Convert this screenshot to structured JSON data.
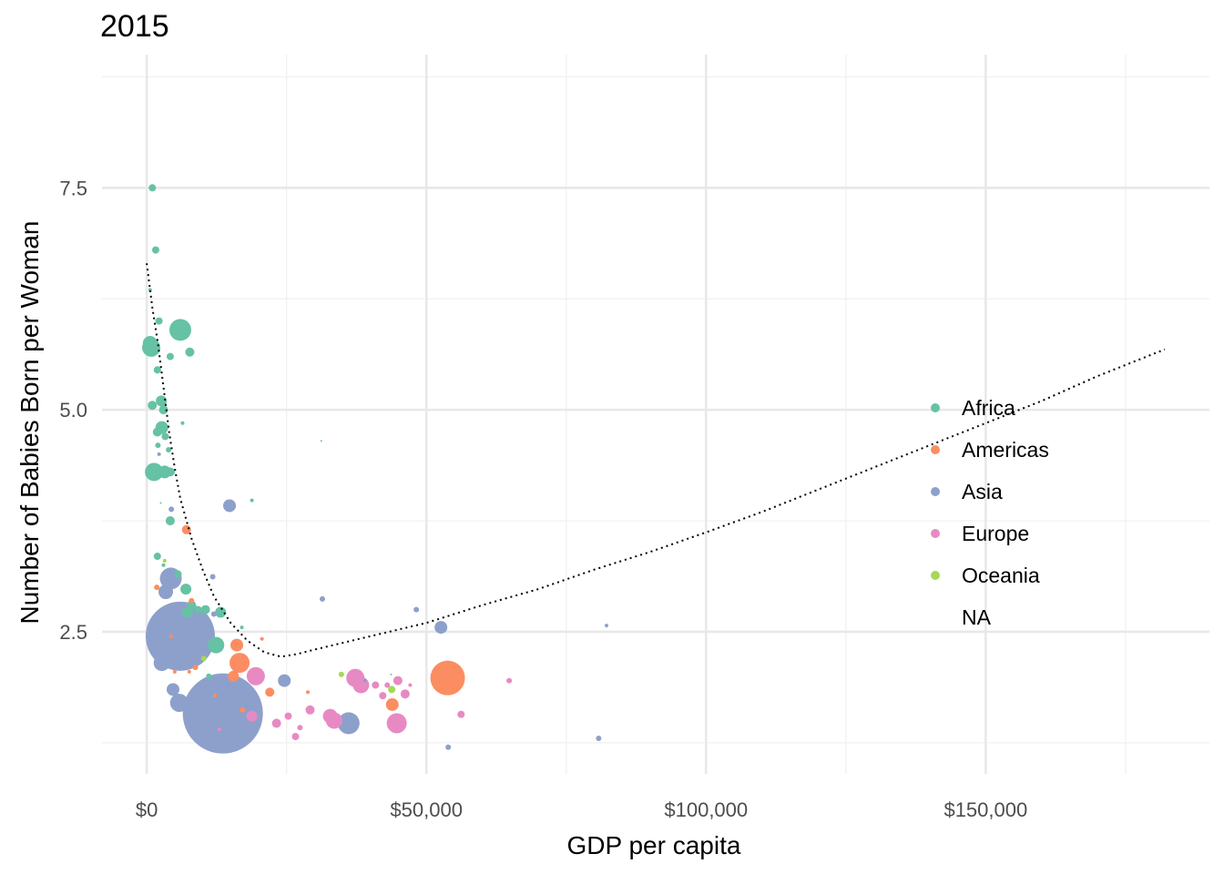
{
  "chart_data": {
    "type": "scatter",
    "title": "2015",
    "xlabel": "GDP per capita",
    "ylabel": "Number of Babies Born per Woman",
    "xlim": [
      -8000,
      190000
    ],
    "ylim": [
      0.9,
      9.0
    ],
    "x_ticks": [
      {
        "value": 0,
        "label": "$0"
      },
      {
        "value": 50000,
        "label": "$50,000"
      },
      {
        "value": 100000,
        "label": "$100,000"
      },
      {
        "value": 150000,
        "label": "$150,000"
      }
    ],
    "y_ticks": [
      {
        "value": 2.5,
        "label": "2.5"
      },
      {
        "value": 5.0,
        "label": "5.0"
      },
      {
        "value": 7.5,
        "label": "7.5"
      }
    ],
    "grid": true,
    "legend": {
      "placement": "right",
      "entries": [
        {
          "name": "Africa",
          "color": "#66C2A5"
        },
        {
          "name": "Americas",
          "color": "#FC8D62"
        },
        {
          "name": "Asia",
          "color": "#8DA0CB"
        },
        {
          "name": "Europe",
          "color": "#E78AC3"
        },
        {
          "name": "Oceania",
          "color": "#A6D854"
        },
        {
          "name": "NA",
          "color": "none"
        }
      ]
    },
    "series": [
      {
        "name": "Africa",
        "color": "#66C2A5",
        "points": [
          [
            1000,
            7.5,
            4
          ],
          [
            1600,
            6.8,
            4
          ],
          [
            600,
            6.35,
            2
          ],
          [
            2200,
            6.0,
            4
          ],
          [
            6000,
            5.9,
            12
          ],
          [
            7700,
            5.65,
            5
          ],
          [
            600,
            5.75,
            8
          ],
          [
            800,
            5.7,
            10
          ],
          [
            4200,
            5.6,
            4
          ],
          [
            1300,
            5.7,
            6
          ],
          [
            1900,
            5.45,
            4
          ],
          [
            2600,
            5.1,
            6
          ],
          [
            1000,
            5.05,
            5
          ],
          [
            3000,
            5.0,
            5
          ],
          [
            6400,
            4.85,
            2
          ],
          [
            1900,
            4.75,
            5
          ],
          [
            2700,
            4.8,
            7
          ],
          [
            3300,
            4.7,
            4
          ],
          [
            2000,
            4.6,
            3
          ],
          [
            3900,
            4.55,
            3
          ],
          [
            31200,
            4.65,
            1
          ],
          [
            1300,
            4.3,
            10
          ],
          [
            3200,
            4.3,
            7
          ],
          [
            4200,
            4.3,
            5
          ],
          [
            2500,
            3.95,
            1
          ],
          [
            4200,
            3.75,
            5
          ],
          [
            18800,
            3.98,
            2
          ],
          [
            1900,
            3.35,
            4
          ],
          [
            3000,
            3.25,
            2
          ],
          [
            5600,
            3.15,
            4
          ],
          [
            7000,
            2.98,
            6
          ],
          [
            8000,
            2.8,
            5
          ],
          [
            9200,
            2.75,
            4
          ],
          [
            10500,
            2.75,
            5
          ],
          [
            7300,
            2.72,
            6
          ],
          [
            13200,
            2.72,
            6
          ],
          [
            17000,
            2.55,
            2
          ],
          [
            12400,
            2.35,
            9
          ],
          [
            11100,
            2.0,
            3
          ]
        ]
      },
      {
        "name": "Americas",
        "color": "#FC8D62",
        "points": [
          [
            7100,
            3.65,
            5
          ],
          [
            1800,
            3.0,
            3
          ],
          [
            8000,
            2.85,
            3
          ],
          [
            20600,
            2.42,
            2
          ],
          [
            16100,
            2.35,
            7
          ],
          [
            16600,
            2.15,
            11
          ],
          [
            15500,
            2.0,
            6
          ],
          [
            7600,
            2.05,
            2
          ],
          [
            12200,
            1.78,
            2
          ],
          [
            22000,
            1.82,
            5
          ],
          [
            28800,
            1.82,
            2
          ],
          [
            53800,
            1.98,
            19
          ],
          [
            43900,
            1.68,
            7
          ],
          [
            17100,
            1.62,
            3
          ],
          [
            4400,
            2.45,
            2
          ],
          [
            5000,
            2.05,
            2
          ],
          [
            8700,
            2.1,
            3
          ]
        ]
      },
      {
        "name": "Asia",
        "color": "#8DA0CB",
        "points": [
          [
            6000,
            2.45,
            38
          ],
          [
            4300,
            3.1,
            12
          ],
          [
            3400,
            2.95,
            8
          ],
          [
            5400,
            2.75,
            7
          ],
          [
            2700,
            2.15,
            9
          ],
          [
            4700,
            1.85,
            7
          ],
          [
            5800,
            1.7,
            10
          ],
          [
            13600,
            1.58,
            44
          ],
          [
            14800,
            3.92,
            7
          ],
          [
            11800,
            3.12,
            3
          ],
          [
            31400,
            2.87,
            3
          ],
          [
            48200,
            2.75,
            3
          ],
          [
            52600,
            2.55,
            7
          ],
          [
            82200,
            2.57,
            2
          ],
          [
            24600,
            1.95,
            7
          ],
          [
            36100,
            1.47,
            12
          ],
          [
            53900,
            1.2,
            3
          ],
          [
            80800,
            1.3,
            3
          ],
          [
            43700,
            2.02,
            1
          ],
          [
            39000,
            1.95,
            2
          ],
          [
            4400,
            3.88,
            3
          ],
          [
            2200,
            4.5,
            2
          ],
          [
            12000,
            2.7,
            3
          ]
        ]
      },
      {
        "name": "Europe",
        "color": "#E78AC3",
        "points": [
          [
            19500,
            2.0,
            10
          ],
          [
            18800,
            1.55,
            6
          ],
          [
            23200,
            1.47,
            5
          ],
          [
            25300,
            1.55,
            4
          ],
          [
            26600,
            1.32,
            4
          ],
          [
            27400,
            1.42,
            3
          ],
          [
            29200,
            1.62,
            5
          ],
          [
            32800,
            1.55,
            8
          ],
          [
            33500,
            1.5,
            9
          ],
          [
            37300,
            1.98,
            10
          ],
          [
            38300,
            1.9,
            9
          ],
          [
            40900,
            1.9,
            4
          ],
          [
            42200,
            1.78,
            4
          ],
          [
            44700,
            1.47,
            11
          ],
          [
            44900,
            1.95,
            5
          ],
          [
            46200,
            1.8,
            5
          ],
          [
            56200,
            1.57,
            4
          ],
          [
            64800,
            1.95,
            3
          ],
          [
            13000,
            1.4,
            2
          ],
          [
            43000,
            1.9,
            3
          ],
          [
            47100,
            1.9,
            2
          ]
        ]
      },
      {
        "name": "Oceania",
        "color": "#A6D854",
        "points": [
          [
            34800,
            2.02,
            3
          ],
          [
            43800,
            1.85,
            4
          ],
          [
            10200,
            2.2,
            3
          ],
          [
            3200,
            3.3,
            2
          ]
        ]
      }
    ],
    "trend": {
      "style": "dotted",
      "color": "#000000",
      "x": [
        0,
        1000,
        2000,
        3000,
        4000,
        5000,
        6000,
        8000,
        10000,
        12000,
        15000,
        18000,
        21000,
        24000,
        27000,
        30000,
        40000,
        50000,
        60000,
        70000,
        80000,
        90000,
        100000,
        110000,
        120000,
        130000,
        140000,
        150000,
        160000,
        170000,
        182000
      ],
      "y": [
        6.65,
        6.15,
        5.75,
        5.25,
        4.75,
        4.35,
        4.0,
        3.55,
        3.2,
        2.9,
        2.6,
        2.4,
        2.27,
        2.22,
        2.25,
        2.3,
        2.45,
        2.6,
        2.8,
        2.98,
        3.2,
        3.4,
        3.62,
        3.85,
        4.1,
        4.35,
        4.6,
        4.85,
        5.1,
        5.38,
        5.68
      ]
    }
  }
}
